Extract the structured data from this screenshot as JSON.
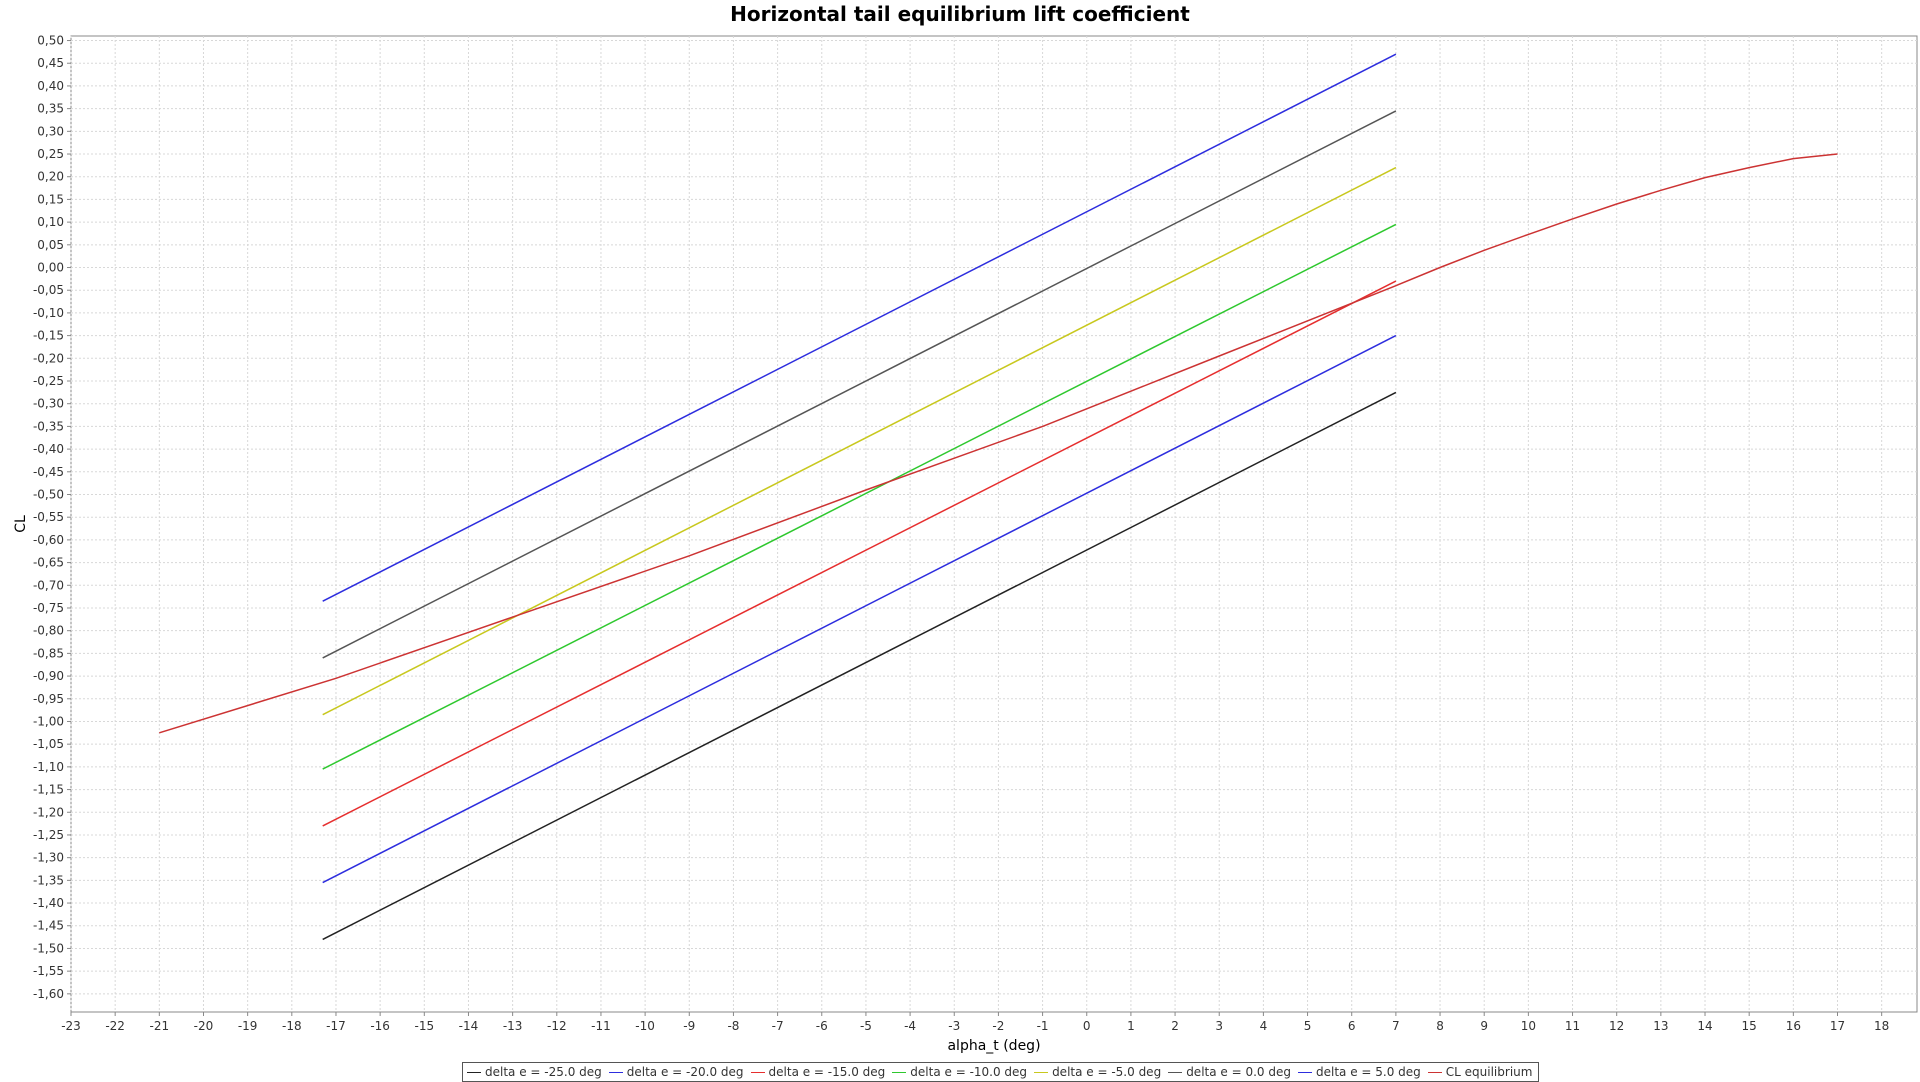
{
  "chart_data": {
    "type": "line",
    "title": "Horizontal tail equilibrium lift coefficient",
    "xlabel": "alpha_t (deg)",
    "ylabel": "CL",
    "xlim": [
      -23,
      18.8
    ],
    "ylim": [
      -1.64,
      0.51
    ],
    "x_ticks": [
      -23,
      -22,
      -21,
      -20,
      -19,
      -18,
      -17,
      -16,
      -15,
      -14,
      -13,
      -12,
      -11,
      -10,
      -9,
      -8,
      -7,
      -6,
      -5,
      -4,
      -3,
      -2,
      -1,
      0,
      1,
      2,
      3,
      4,
      5,
      6,
      7,
      8,
      9,
      10,
      11,
      12,
      13,
      14,
      15,
      16,
      17,
      18
    ],
    "y_ticks": [
      "0,50",
      "0,45",
      "0,40",
      "0,35",
      "0,30",
      "0,25",
      "0,20",
      "0,15",
      "0,10",
      "0,05",
      "0,00",
      "-0,05",
      "-0,10",
      "-0,15",
      "-0,20",
      "-0,25",
      "-0,30",
      "-0,35",
      "-0,40",
      "-0,45",
      "-0,50",
      "-0,55",
      "-0,60",
      "-0,65",
      "-0,70",
      "-0,75",
      "-0,80",
      "-0,85",
      "-0,90",
      "-0,95",
      "-1,00",
      "-1,05",
      "-1,10",
      "-1,15",
      "-1,20",
      "-1,25",
      "-1,30",
      "-1,35",
      "-1,40",
      "-1,45",
      "-1,50",
      "-1,55",
      "-1,60"
    ],
    "y_tick_values": [
      0.5,
      0.45,
      0.4,
      0.35,
      0.3,
      0.25,
      0.2,
      0.15,
      0.1,
      0.05,
      0.0,
      -0.05,
      -0.1,
      -0.15,
      -0.2,
      -0.25,
      -0.3,
      -0.35,
      -0.4,
      -0.45,
      -0.5,
      -0.55,
      -0.6,
      -0.65,
      -0.7,
      -0.75,
      -0.8,
      -0.85,
      -0.9,
      -0.95,
      -1.0,
      -1.05,
      -1.1,
      -1.15,
      -1.2,
      -1.25,
      -1.3,
      -1.35,
      -1.4,
      -1.45,
      -1.5,
      -1.55,
      -1.6
    ],
    "grid": true,
    "legend_position": "bottom",
    "series": [
      {
        "name": "delta e = -25.0 deg",
        "color": "#222222",
        "x": [
          -17.3,
          7
        ],
        "y": [
          -1.48,
          -0.275
        ]
      },
      {
        "name": "delta e = -20.0 deg",
        "color": "#2d2dde",
        "x": [
          -17.3,
          7
        ],
        "y": [
          -1.355,
          -0.15
        ]
      },
      {
        "name": "delta e = -15.0 deg",
        "color": "#e62e2e",
        "x": [
          -17.3,
          7
        ],
        "y": [
          -1.23,
          -0.03
        ]
      },
      {
        "name": "delta e = -10.0 deg",
        "color": "#2ec82e",
        "x": [
          -17.3,
          7
        ],
        "y": [
          -1.105,
          0.095
        ]
      },
      {
        "name": "delta e = -5.0 deg",
        "color": "#c8c81e",
        "x": [
          -17.3,
          7
        ],
        "y": [
          -0.985,
          0.22
        ]
      },
      {
        "name": "delta e = 0.0 deg",
        "color": "#555555",
        "x": [
          -17.3,
          7
        ],
        "y": [
          -0.86,
          0.345
        ]
      },
      {
        "name": "delta e = 5.0 deg",
        "color": "#2d2dde",
        "x": [
          -17.3,
          7
        ],
        "y": [
          -0.735,
          0.47
        ]
      },
      {
        "name": "CL equilibrium",
        "color": "#cc3333",
        "x": [
          -21,
          -17,
          -13,
          -9,
          -5,
          -1,
          3,
          7,
          8,
          9,
          10,
          11,
          12,
          13,
          14,
          15,
          16,
          17
        ],
        "y": [
          -1.025,
          -0.905,
          -0.77,
          -0.635,
          -0.49,
          -0.35,
          -0.195,
          -0.04,
          0.0,
          0.038,
          0.073,
          0.107,
          0.14,
          0.17,
          0.198,
          0.22,
          0.24,
          0.25
        ]
      }
    ]
  }
}
